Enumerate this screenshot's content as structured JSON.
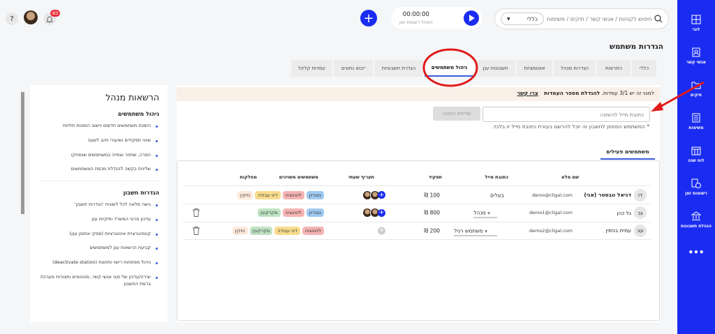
{
  "topbar": {
    "search_placeholder": "חיפוש לקוחות / אנשי קשר / תיקים / משימות",
    "search_scope": "כללי",
    "timer_value": "00:00:00",
    "timer_label": "התחל רשומת זמן",
    "notification_count": "83"
  },
  "sidebar": {
    "color": "#1b2cf2",
    "items": [
      {
        "label": "לובי",
        "icon": "dashboard-icon"
      },
      {
        "label": "אנשי קשר",
        "icon": "contacts-icon"
      },
      {
        "label": "תיקים",
        "icon": "folder-icon"
      },
      {
        "label": "משימות",
        "icon": "tasks-icon"
      },
      {
        "label": "לוח שנה",
        "icon": "calendar-icon"
      },
      {
        "label": "רשומות זמן",
        "icon": "time-records-icon"
      },
      {
        "label": "הנהלת חשבונות",
        "icon": "bank-icon"
      }
    ],
    "more": "•••"
  },
  "page": {
    "title": "הגדרות משתמש",
    "tabs": [
      "כללי",
      "התראות",
      "הגדרות מנהל",
      "אוטומציות",
      "חשבונות ענן",
      "ניהול משתמשים",
      "הגדרת חשבוניות",
      "ייבוא נתונים",
      "עמדות קליגל"
    ],
    "active_tab": "ניהול משתמשים"
  },
  "banner": {
    "text": "למנוי זה יש 3/1 עמדות.",
    "bold": "להגדלת מספר העמדות",
    "link": "צרו קשר"
  },
  "invite": {
    "placeholder": "כתובת מייל להזמנה",
    "button": "שליחת הזמנה",
    "note": "* המשתמש המוזמן לחשבון זה יוכל להרשם בעזרת כתובת מייל זו בלבד."
  },
  "users_tab": "משתמשים פעילים",
  "table": {
    "headers": [
      "שם מלא",
      "כתובת מייל",
      "תפקיד",
      "תעריף שעתי",
      "משתמשים משויכים",
      "מחלקות"
    ],
    "rows": [
      {
        "initials": "דו",
        "name": "דניאל וובסטר (אני)",
        "email": "demo@cligal.com",
        "role": "בעלים",
        "rate": "100 ₪",
        "departments": [
          "נוטריון",
          "ליטיגציה",
          "דיני עבודה",
          "נזיקין"
        ]
      },
      {
        "initials": "גכ",
        "name": "גל כהן",
        "email": "demo1@cligal.com",
        "role": "מנהל",
        "rate": "800 ₪",
        "departments": [
          "נוטריון",
          "ליטיגציה",
          "מקרקעין"
        ]
      },
      {
        "initials": "עב",
        "name": "עמית בנימין",
        "email": "demo2@cligal.com",
        "role": "משתמש רגיל",
        "rate": "200 ₪",
        "departments": [
          "ליטיגציה",
          "דיני עבודה",
          "מקרקעין",
          "נזיקין"
        ]
      }
    ]
  },
  "department_colors": {
    "נוטריון": "#9fc9f0",
    "ליטיגציה": "#f6b3b3",
    "דיני עבודה": "#f8dc8c",
    "נזיקין": "#fde8dc",
    "מקרקעין": "#bfe3c3"
  },
  "permissions": {
    "title": "הרשאות מנהל",
    "sections": [
      {
        "title": "ניהול משתמשים",
        "items": [
          "הזמנת משתמשים חדשים ויישוב הזמנות תלויות",
          "שינוי תפקידים ושיעורי חיוב לשעה",
          "הסרה, שחזור וצפייה במשתמשים שנמחקו",
          "שליחת בקשה להגדלת מכסת המשתמשים"
        ]
      },
      {
        "title": "הגדרות חשבון",
        "items": [
          "גישה מלאה לכל לשונית 'הגדרות חשבון'",
          "עדכון פרטי המשרד ותיקיות ענן",
          "קונפיגורציית אינטגרציות (ספקי אחסון ענן)",
          "קביעת הרשאות ענן למשתמשים",
          "ניהול מפתחות רישוי ותחנות (deactivate station)",
          "יצירה/עדכון של סוגי אנשי קשר, סטטוסים ותצורות מערכת ברמת החשבון"
        ]
      }
    ]
  }
}
